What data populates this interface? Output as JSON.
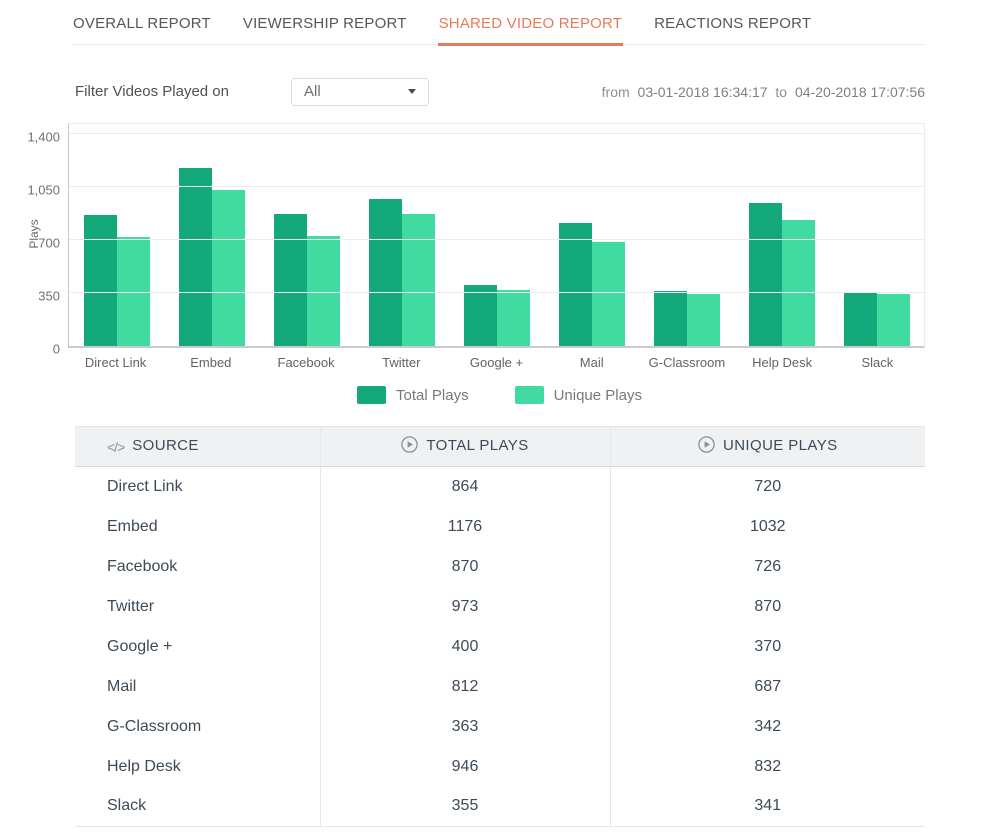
{
  "tabs": [
    {
      "id": "overall-report",
      "label": "OVERALL REPORT",
      "active": false
    },
    {
      "id": "viewership-report",
      "label": "VIEWERSHIP REPORT",
      "active": false
    },
    {
      "id": "shared-video-report",
      "label": "SHARED VIDEO REPORT",
      "active": true
    },
    {
      "id": "reactions-report",
      "label": "REACTIONS REPORT",
      "active": false
    }
  ],
  "filter": {
    "label": "Filter Videos Played on",
    "dropdown_value": "All"
  },
  "date_range": {
    "from_label": "from",
    "from_value": "03-01-2018 16:34:17",
    "to_label": "to",
    "to_value": "04-20-2018 17:07:56"
  },
  "chart_data": {
    "type": "bar",
    "title": "",
    "xlabel": "",
    "ylabel": "Plays",
    "ylim": [
      0,
      1400
    ],
    "grid": true,
    "legend_position": "bottom",
    "yticks": [
      {
        "label": "1,400",
        "value": 1400
      },
      {
        "label": "1,050",
        "value": 1050
      },
      {
        "label": "700",
        "value": 700
      },
      {
        "label": "350",
        "value": 350
      },
      {
        "label": "0",
        "value": 0
      }
    ],
    "categories": [
      "Direct Link",
      "Embed",
      "Facebook",
      "Twitter",
      "Google +",
      "Mail",
      "G-Classroom",
      "Help Desk",
      "Slack"
    ],
    "series": [
      {
        "name": "Total Plays",
        "color": "#14a97b",
        "values": [
          864,
          1176,
          870,
          973,
          400,
          812,
          363,
          946,
          355
        ]
      },
      {
        "name": "Unique Plays",
        "color": "#41dba2",
        "values": [
          720,
          1032,
          726,
          870,
          370,
          687,
          342,
          832,
          341
        ]
      }
    ]
  },
  "table": {
    "headers": [
      {
        "icon": "code-icon",
        "label": "SOURCE"
      },
      {
        "icon": "play-circle-icon",
        "label": "TOTAL PLAYS"
      },
      {
        "icon": "play-circle-icon",
        "label": "UNIQUE PLAYS"
      }
    ],
    "rows": [
      {
        "source": "Direct Link",
        "total_plays": "864",
        "unique_plays": "720"
      },
      {
        "source": "Embed",
        "total_plays": "1176",
        "unique_plays": "1032"
      },
      {
        "source": "Facebook",
        "total_plays": "870",
        "unique_plays": "726"
      },
      {
        "source": "Twitter",
        "total_plays": "973",
        "unique_plays": "870"
      },
      {
        "source": "Google +",
        "total_plays": "400",
        "unique_plays": "370"
      },
      {
        "source": "Mail",
        "total_plays": "812",
        "unique_plays": "687"
      },
      {
        "source": "G-Classroom",
        "total_plays": "363",
        "unique_plays": "342"
      },
      {
        "source": "Help Desk",
        "total_plays": "946",
        "unique_plays": "832"
      },
      {
        "source": "Slack",
        "total_plays": "355",
        "unique_plays": "341"
      }
    ]
  },
  "colors": {
    "accent": "#e87a5a",
    "total_plays": "#14a97b",
    "unique_plays": "#41dba2"
  }
}
